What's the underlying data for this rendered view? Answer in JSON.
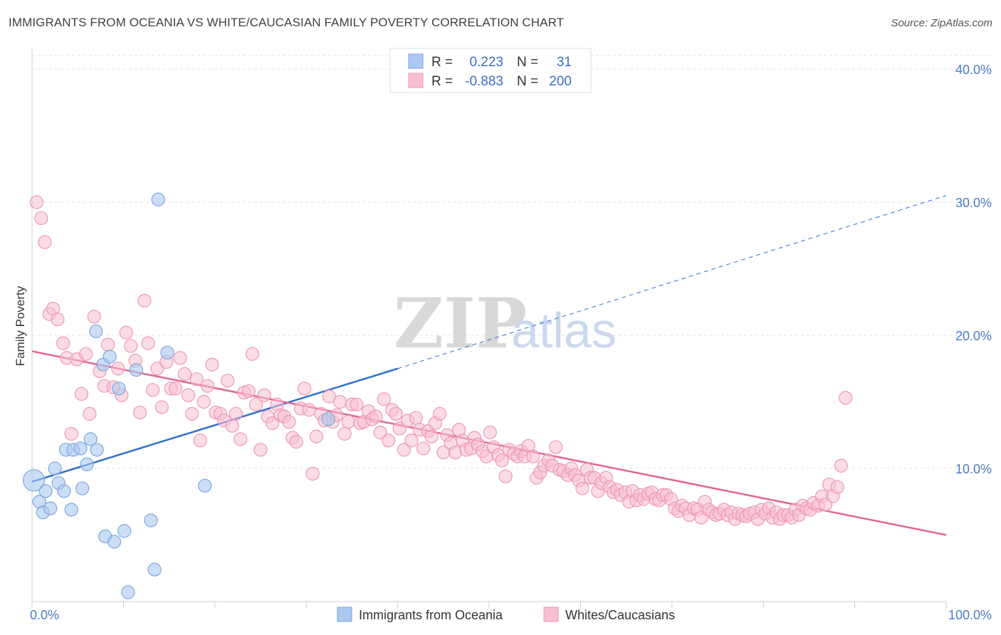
{
  "title": "IMMIGRANTS FROM OCEANIA VS WHITE/CAUCASIAN FAMILY POVERTY CORRELATION CHART",
  "source": "Source: ZipAtlas.com",
  "watermark": {
    "zip": "ZIP",
    "atlas": "atlas"
  },
  "colors": {
    "blue_fill": "#aac8f0",
    "blue_stroke": "#7ba6e0",
    "blue_line": "#2f6fcf",
    "pink_fill": "#f7bfd0",
    "pink_stroke": "#ee97b3",
    "pink_line": "#e36592",
    "grid": "#e3e3e3",
    "axis": "#cccccc",
    "tick_text": "#4a7cc4"
  },
  "legend": {
    "rows": [
      {
        "r_label": "R =",
        "r_value": "0.223",
        "n_label": "N =",
        "n_value": "31",
        "color": "blue"
      },
      {
        "r_label": "R =",
        "r_value": "-0.883",
        "n_label": "N =",
        "n_value": "200",
        "color": "pink"
      }
    ]
  },
  "bottom_legend": [
    "Immigrants from Oceania",
    "Whites/Caucasians"
  ],
  "chart_data": {
    "type": "scatter",
    "ylabel": "Family Poverty",
    "xlim": [
      0,
      100
    ],
    "ylim": [
      0,
      40
    ],
    "x_tick_labels": [
      "0.0%",
      "100.0%"
    ],
    "y_ticks": [
      10,
      20,
      30,
      40
    ],
    "y_tick_labels": [
      "10.0%",
      "20.0%",
      "30.0%",
      "40.0%"
    ],
    "grid": true,
    "series": [
      {
        "name": "Immigrants from Oceania",
        "color": "blue",
        "trend": {
          "x0": 0,
          "y0": 9.0,
          "x1": 40,
          "y1": 17.5,
          "dashed_to_x": 100,
          "dashed_to_y": 30.5
        },
        "points": [
          [
            0.2,
            9.1,
            15
          ],
          [
            0.8,
            7.5,
            9
          ],
          [
            1.2,
            6.7,
            9
          ],
          [
            1.5,
            8.3,
            9
          ],
          [
            2.0,
            7.0,
            9
          ],
          [
            2.5,
            10.0,
            9
          ],
          [
            2.9,
            8.9,
            9
          ],
          [
            3.5,
            8.3,
            9
          ],
          [
            3.7,
            11.4,
            9
          ],
          [
            4.3,
            6.9,
            9
          ],
          [
            4.5,
            11.4,
            9
          ],
          [
            5.3,
            11.5,
            9
          ],
          [
            5.5,
            8.5,
            9
          ],
          [
            6.0,
            10.3,
            9
          ],
          [
            6.4,
            12.2,
            9
          ],
          [
            7.1,
            11.4,
            9
          ],
          [
            7.0,
            20.3,
            9
          ],
          [
            7.8,
            17.8,
            9
          ],
          [
            8.0,
            4.9,
            9
          ],
          [
            8.5,
            18.4,
            9
          ],
          [
            9.0,
            4.5,
            9
          ],
          [
            9.5,
            16.0,
            9
          ],
          [
            10.1,
            5.3,
            9
          ],
          [
            10.5,
            0.7,
            9
          ],
          [
            11.4,
            17.4,
            9
          ],
          [
            13.0,
            6.1,
            9
          ],
          [
            13.4,
            2.4,
            9
          ],
          [
            13.8,
            30.2,
            9
          ],
          [
            14.8,
            18.7,
            9
          ],
          [
            18.9,
            8.7,
            9
          ],
          [
            32.4,
            13.7,
            9
          ]
        ]
      },
      {
        "name": "Whites/Caucasians",
        "color": "pink",
        "trend": {
          "x0": 0,
          "y0": 18.8,
          "x1": 100,
          "y1": 5.0
        },
        "points": [
          [
            0.5,
            30.0
          ],
          [
            1.0,
            28.8
          ],
          [
            1.4,
            27.0
          ],
          [
            1.9,
            21.6
          ],
          [
            2.3,
            22.0
          ],
          [
            2.8,
            21.2
          ],
          [
            3.4,
            19.4
          ],
          [
            3.8,
            18.3
          ],
          [
            4.3,
            12.6
          ],
          [
            4.9,
            18.2
          ],
          [
            5.4,
            15.6
          ],
          [
            5.9,
            18.6
          ],
          [
            6.3,
            14.1
          ],
          [
            6.8,
            21.4
          ],
          [
            7.4,
            17.3
          ],
          [
            7.9,
            16.2
          ],
          [
            8.3,
            19.3
          ],
          [
            8.9,
            16.1
          ],
          [
            9.4,
            17.5
          ],
          [
            9.8,
            15.5
          ],
          [
            10.3,
            20.2
          ],
          [
            10.8,
            19.2
          ],
          [
            11.3,
            18.1
          ],
          [
            11.8,
            14.2
          ],
          [
            12.3,
            22.6
          ],
          [
            12.7,
            19.4
          ],
          [
            13.2,
            15.9
          ],
          [
            13.7,
            17.5
          ],
          [
            14.2,
            14.6
          ],
          [
            14.7,
            18.0
          ],
          [
            15.2,
            16.0
          ],
          [
            15.7,
            16.0
          ],
          [
            16.2,
            18.3
          ],
          [
            16.7,
            17.1
          ],
          [
            17.1,
            15.5
          ],
          [
            17.5,
            14.1
          ],
          [
            18.0,
            16.7
          ],
          [
            18.4,
            12.1
          ],
          [
            18.8,
            15.0
          ],
          [
            19.2,
            16.2
          ],
          [
            19.7,
            17.8
          ],
          [
            20.1,
            14.2
          ],
          [
            20.6,
            14.1
          ],
          [
            21.0,
            13.6
          ],
          [
            21.4,
            16.6
          ],
          [
            21.9,
            13.2
          ],
          [
            22.3,
            14.1
          ],
          [
            22.8,
            12.2
          ],
          [
            23.2,
            15.7
          ],
          [
            23.7,
            15.8
          ],
          [
            24.1,
            18.6
          ],
          [
            24.5,
            14.8
          ],
          [
            25.0,
            11.4
          ],
          [
            25.4,
            15.5
          ],
          [
            25.8,
            13.9
          ],
          [
            26.3,
            13.4
          ],
          [
            26.8,
            14.8
          ],
          [
            27.2,
            14.0
          ],
          [
            27.6,
            13.9
          ],
          [
            28.1,
            13.5
          ],
          [
            28.5,
            12.3
          ],
          [
            28.9,
            12.0
          ],
          [
            29.4,
            14.5
          ],
          [
            29.8,
            16.0
          ],
          [
            30.3,
            14.4
          ],
          [
            30.7,
            9.6
          ],
          [
            31.1,
            12.4
          ],
          [
            31.6,
            14.1
          ],
          [
            32.0,
            13.6
          ],
          [
            32.5,
            15.4
          ],
          [
            32.9,
            13.5
          ],
          [
            33.3,
            14.0
          ],
          [
            33.7,
            15.0
          ],
          [
            34.2,
            12.6
          ],
          [
            34.6,
            13.5
          ],
          [
            35.0,
            14.8
          ],
          [
            35.5,
            14.8
          ],
          [
            35.9,
            13.4
          ],
          [
            36.3,
            13.5
          ],
          [
            36.8,
            14.3
          ],
          [
            37.2,
            13.7
          ],
          [
            37.6,
            13.9
          ],
          [
            38.1,
            12.7
          ],
          [
            38.5,
            15.2
          ],
          [
            39.0,
            12.1
          ],
          [
            39.4,
            14.4
          ],
          [
            39.8,
            14.1
          ],
          [
            40.2,
            13.0
          ],
          [
            40.7,
            11.4
          ],
          [
            41.1,
            13.6
          ],
          [
            41.5,
            12.1
          ],
          [
            42.0,
            13.8
          ],
          [
            42.4,
            12.9
          ],
          [
            42.8,
            11.5
          ],
          [
            43.3,
            12.8
          ],
          [
            43.7,
            12.4
          ],
          [
            44.1,
            13.4
          ],
          [
            44.6,
            14.1
          ],
          [
            45.0,
            11.2
          ],
          [
            45.4,
            12.5
          ],
          [
            45.8,
            11.9
          ],
          [
            46.3,
            11.2
          ],
          [
            46.7,
            12.9
          ],
          [
            47.1,
            12.1
          ],
          [
            47.5,
            11.4
          ],
          [
            48.0,
            11.5
          ],
          [
            48.4,
            12.3
          ],
          [
            48.8,
            11.8
          ],
          [
            49.3,
            11.3
          ],
          [
            49.7,
            10.9
          ],
          [
            50.1,
            12.7
          ],
          [
            50.5,
            11.6
          ],
          [
            51.0,
            11.0
          ],
          [
            51.4,
            10.6
          ],
          [
            51.8,
            9.4
          ],
          [
            52.2,
            11.4
          ],
          [
            52.7,
            11.1
          ],
          [
            53.1,
            10.9
          ],
          [
            53.5,
            11.3
          ],
          [
            53.9,
            10.9
          ],
          [
            54.3,
            11.7
          ],
          [
            54.8,
            10.9
          ],
          [
            55.2,
            9.3
          ],
          [
            55.6,
            9.7
          ],
          [
            56.0,
            10.2
          ],
          [
            56.5,
            10.6
          ],
          [
            56.9,
            10.2
          ],
          [
            57.3,
            11.6
          ],
          [
            57.7,
            9.9
          ],
          [
            58.1,
            9.8
          ],
          [
            58.6,
            9.5
          ],
          [
            59.0,
            10.0
          ],
          [
            59.4,
            9.5
          ],
          [
            59.8,
            9.1
          ],
          [
            60.2,
            8.5
          ],
          [
            60.7,
            9.9
          ],
          [
            61.1,
            9.3
          ],
          [
            61.5,
            9.3
          ],
          [
            61.9,
            8.3
          ],
          [
            62.3,
            8.9
          ],
          [
            62.8,
            9.3
          ],
          [
            63.2,
            8.6
          ],
          [
            63.6,
            8.2
          ],
          [
            64.0,
            8.4
          ],
          [
            64.4,
            8.0
          ],
          [
            64.9,
            8.2
          ],
          [
            65.3,
            7.5
          ],
          [
            65.7,
            8.3
          ],
          [
            66.1,
            7.6
          ],
          [
            66.5,
            8.0
          ],
          [
            66.9,
            7.7
          ],
          [
            67.4,
            8.1
          ],
          [
            67.8,
            8.2
          ],
          [
            68.2,
            7.7
          ],
          [
            68.6,
            7.6
          ],
          [
            69.0,
            8.0
          ],
          [
            69.4,
            8.0
          ],
          [
            69.9,
            7.7
          ],
          [
            70.3,
            7.0
          ],
          [
            70.7,
            6.8
          ],
          [
            71.1,
            7.2
          ],
          [
            71.5,
            7.0
          ],
          [
            71.9,
            6.5
          ],
          [
            72.4,
            7.0
          ],
          [
            72.8,
            6.9
          ],
          [
            73.2,
            6.3
          ],
          [
            73.6,
            7.5
          ],
          [
            74.0,
            6.9
          ],
          [
            74.4,
            6.7
          ],
          [
            74.8,
            6.5
          ],
          [
            75.2,
            6.6
          ],
          [
            75.7,
            6.9
          ],
          [
            76.1,
            6.5
          ],
          [
            76.5,
            6.7
          ],
          [
            76.9,
            6.2
          ],
          [
            77.3,
            6.6
          ],
          [
            77.7,
            6.5
          ],
          [
            78.1,
            6.4
          ],
          [
            78.5,
            6.6
          ],
          [
            79.0,
            6.7
          ],
          [
            79.4,
            6.2
          ],
          [
            79.8,
            6.9
          ],
          [
            80.2,
            6.6
          ],
          [
            80.6,
            7.0
          ],
          [
            81.0,
            6.3
          ],
          [
            81.4,
            6.7
          ],
          [
            81.8,
            6.2
          ],
          [
            82.2,
            6.5
          ],
          [
            82.7,
            6.5
          ],
          [
            83.1,
            6.3
          ],
          [
            83.5,
            6.9
          ],
          [
            83.9,
            6.5
          ],
          [
            84.3,
            7.2
          ],
          [
            84.7,
            7.0
          ],
          [
            85.1,
            6.9
          ],
          [
            85.5,
            7.4
          ],
          [
            86.0,
            7.2
          ],
          [
            86.4,
            7.9
          ],
          [
            86.8,
            7.3
          ],
          [
            87.2,
            8.8
          ],
          [
            87.6,
            7.9
          ],
          [
            88.1,
            8.6
          ],
          [
            88.5,
            10.2
          ],
          [
            89.0,
            15.3
          ]
        ]
      }
    ]
  }
}
